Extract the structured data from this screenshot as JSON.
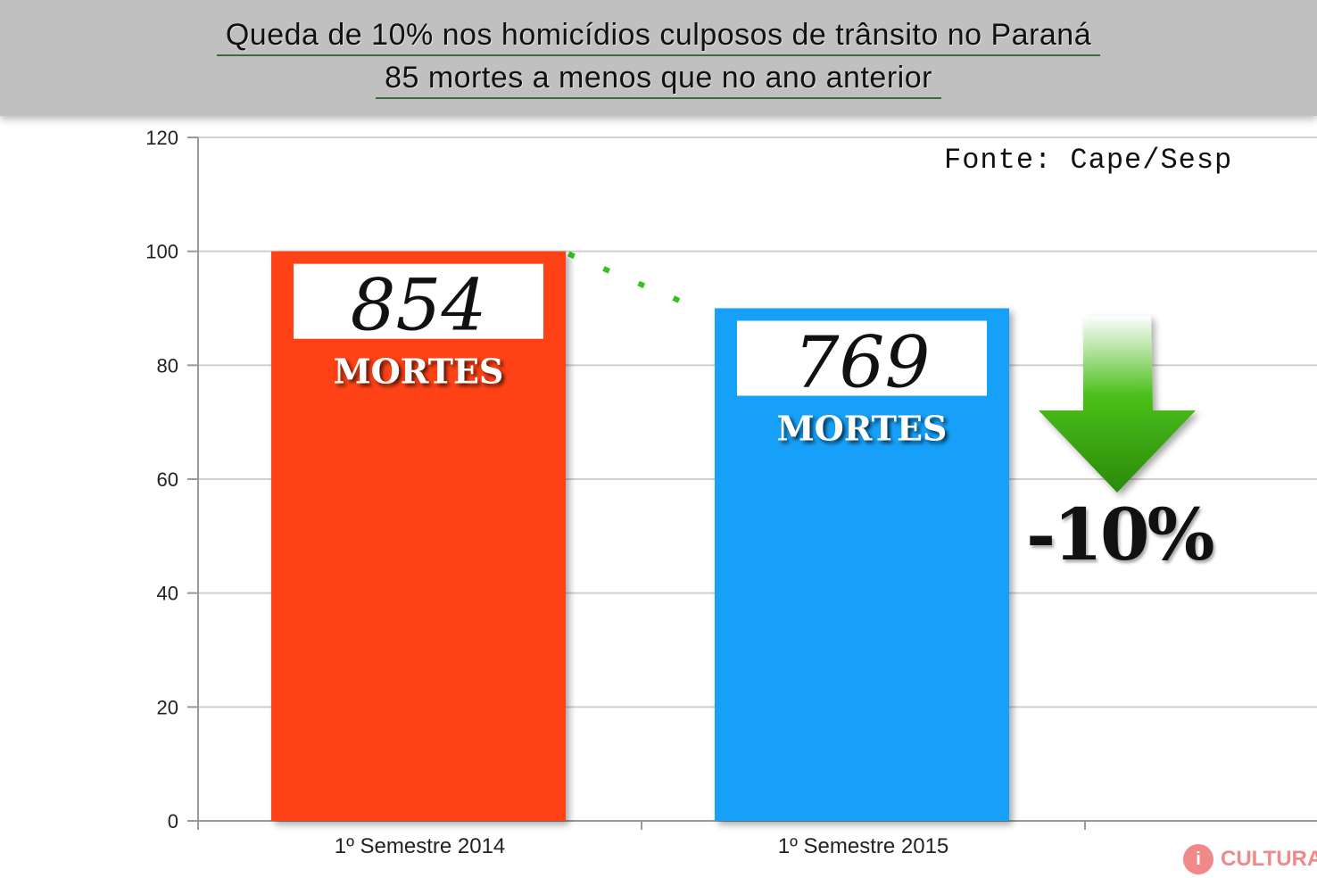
{
  "title_line1": "Queda de 10% nos homicídios culposos de trânsito no Paraná",
  "title_line2": "85 mortes a menos que no ano anterior",
  "source": "Fonte: Cape/Sesp",
  "change_label": "-10%",
  "logo_text": "CULTURA",
  "colors": {
    "bar_2014": "#ff4212",
    "bar_2015": "#12a0fa",
    "arrow": "#4bbf1a",
    "trend_dots": "#35c21e",
    "header_bg": "#c0c0c0"
  },
  "icons": {
    "down_arrow": "down-arrow-icon",
    "logo": "radio-logo-icon"
  },
  "chart_data": {
    "type": "bar",
    "categories": [
      "1º Semestre 2014",
      "1º Semestre 2015"
    ],
    "values": [
      100,
      90
    ],
    "bar_labels": [
      {
        "number": "854",
        "unit": "MORTES"
      },
      {
        "number": "769",
        "unit": "MORTES"
      }
    ],
    "ylim": [
      0,
      120
    ],
    "yticks": [
      0,
      20,
      40,
      60,
      80,
      100,
      120
    ],
    "grid": true,
    "legend": "none",
    "title": "",
    "xlabel": "",
    "ylabel": ""
  }
}
